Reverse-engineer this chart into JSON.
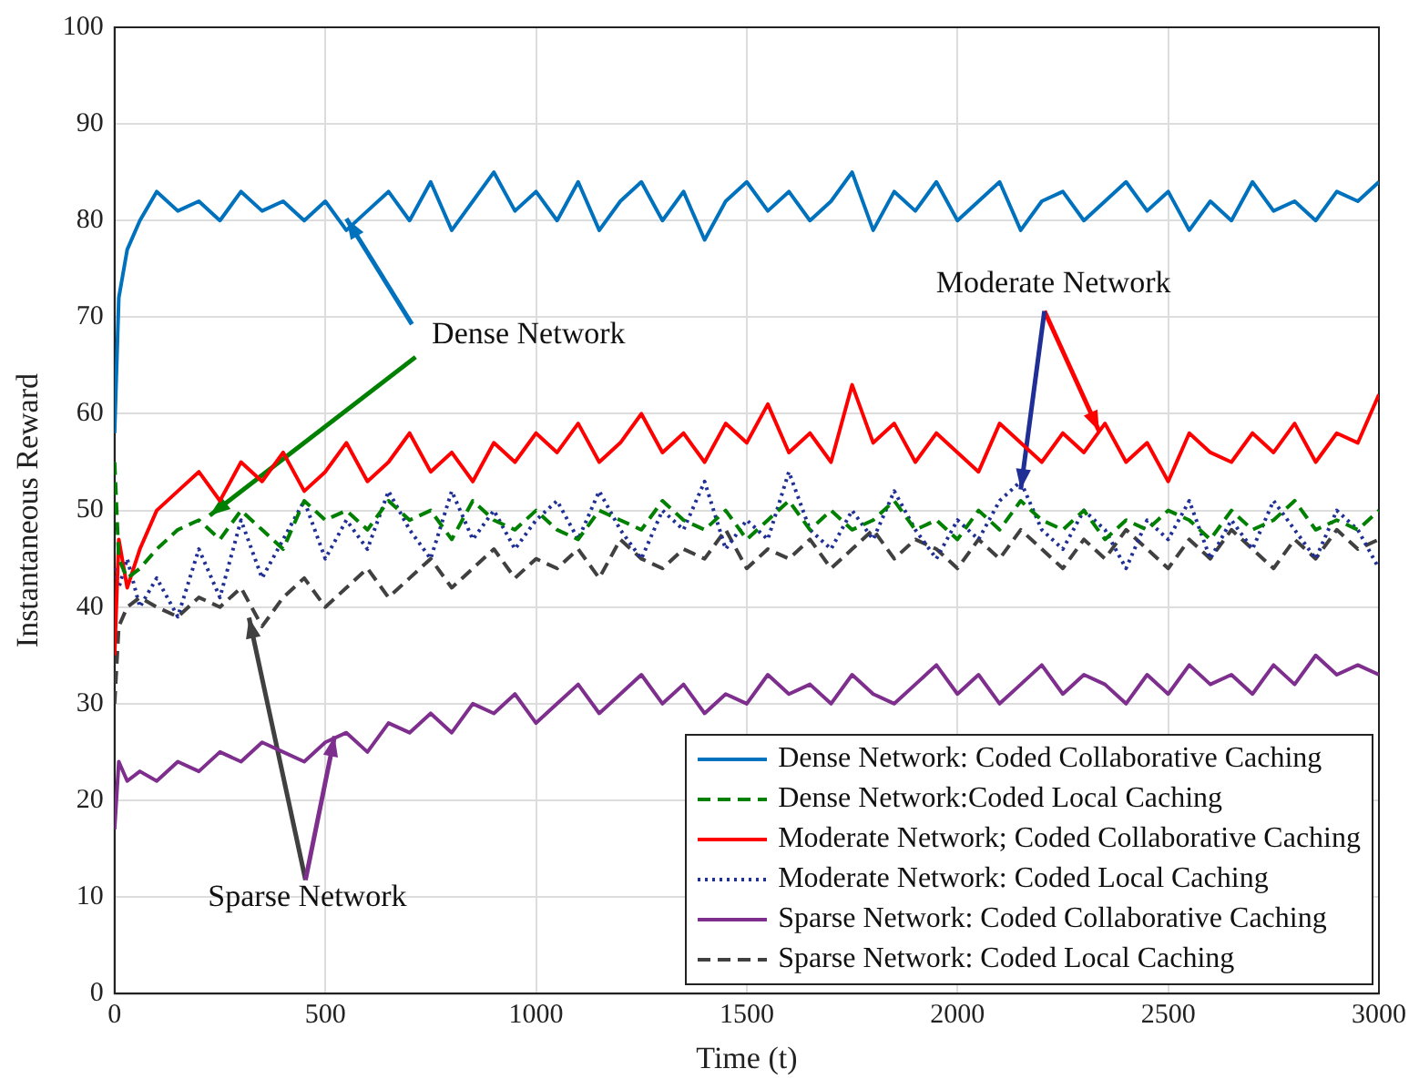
{
  "chart_data": {
    "type": "line",
    "xlabel": "Time (t)",
    "ylabel": "Instantaneous Reward",
    "x": [
      0,
      10,
      30,
      60,
      100,
      150,
      200,
      250,
      300,
      350,
      400,
      450,
      500,
      550,
      600,
      650,
      700,
      750,
      800,
      850,
      900,
      950,
      1000,
      1050,
      1100,
      1150,
      1200,
      1250,
      1300,
      1350,
      1400,
      1450,
      1500,
      1550,
      1600,
      1650,
      1700,
      1750,
      1800,
      1850,
      1900,
      1950,
      2000,
      2050,
      2100,
      2150,
      2200,
      2250,
      2300,
      2350,
      2400,
      2450,
      2500,
      2550,
      2600,
      2650,
      2700,
      2750,
      2800,
      2850,
      2900,
      2950,
      3000
    ],
    "series": [
      {
        "name": "Dense Network: Coded Collaborative Caching",
        "color": "#0072bd",
        "line_style": "solid",
        "values": [
          58,
          72,
          77,
          80,
          83,
          81,
          82,
          80,
          83,
          81,
          82,
          80,
          82,
          79,
          81,
          83,
          80,
          84,
          79,
          82,
          85,
          81,
          83,
          80,
          84,
          79,
          82,
          84,
          80,
          83,
          78,
          82,
          84,
          81,
          83,
          80,
          82,
          85,
          79,
          83,
          81,
          84,
          80,
          82,
          84,
          79,
          82,
          83,
          80,
          82,
          84,
          81,
          83,
          79,
          82,
          80,
          84,
          81,
          82,
          80,
          83,
          82,
          84
        ]
      },
      {
        "name": "Dense Network:Coded Local Caching",
        "color": "#008000",
        "line_style": "dashed",
        "values": [
          55,
          45,
          43,
          44,
          46,
          48,
          49,
          47,
          50,
          48,
          46,
          51,
          49,
          50,
          48,
          51,
          49,
          50,
          47,
          51,
          49,
          48,
          50,
          48,
          47,
          50,
          49,
          48,
          51,
          49,
          48,
          50,
          47,
          49,
          51,
          48,
          50,
          48,
          49,
          51,
          48,
          49,
          47,
          50,
          48,
          51,
          49,
          48,
          50,
          47,
          49,
          48,
          50,
          49,
          47,
          50,
          48,
          49,
          51,
          48,
          49,
          48,
          50
        ]
      },
      {
        "name": "Moderate Network; Coded Collaborative Caching",
        "color": "#ff0000",
        "line_style": "solid",
        "values": [
          35,
          47,
          42,
          46,
          50,
          52,
          54,
          51,
          55,
          53,
          56,
          52,
          54,
          57,
          53,
          55,
          58,
          54,
          56,
          53,
          57,
          55,
          58,
          56,
          59,
          55,
          57,
          60,
          56,
          58,
          55,
          59,
          57,
          61,
          56,
          58,
          55,
          63,
          57,
          59,
          55,
          58,
          56,
          54,
          59,
          57,
          55,
          58,
          56,
          59,
          55,
          57,
          53,
          58,
          56,
          55,
          58,
          56,
          59,
          55,
          58,
          57,
          62
        ]
      },
      {
        "name": "Moderate Network: Coded Local Caching",
        "color": "#1f2f96",
        "line_style": "dotted",
        "values": [
          44,
          42,
          45,
          40,
          43,
          39,
          46,
          41,
          49,
          43,
          47,
          51,
          45,
          49,
          46,
          52,
          48,
          45,
          52,
          47,
          50,
          46,
          49,
          51,
          47,
          52,
          48,
          45,
          50,
          48,
          53,
          46,
          49,
          47,
          54,
          48,
          46,
          50,
          47,
          52,
          48,
          45,
          49,
          47,
          51,
          53,
          48,
          46,
          50,
          48,
          44,
          49,
          47,
          51,
          45,
          49,
          46,
          51,
          48,
          45,
          50,
          48,
          44
        ]
      },
      {
        "name": "Sparse Network: Coded Collaborative Caching",
        "color": "#7e2f8e",
        "line_style": "solid",
        "values": [
          17,
          24,
          22,
          23,
          22,
          24,
          23,
          25,
          24,
          26,
          25,
          24,
          26,
          27,
          25,
          28,
          27,
          29,
          27,
          30,
          29,
          31,
          28,
          30,
          32,
          29,
          31,
          33,
          30,
          32,
          29,
          31,
          30,
          33,
          31,
          32,
          30,
          33,
          31,
          30,
          32,
          34,
          31,
          33,
          30,
          32,
          34,
          31,
          33,
          32,
          30,
          33,
          31,
          34,
          32,
          33,
          31,
          34,
          32,
          35,
          33,
          34,
          33
        ]
      },
      {
        "name": "Sparse Network: Coded Local Caching",
        "color": "#404040",
        "line_style": "dashed",
        "values": [
          30,
          38,
          40,
          41,
          40,
          39,
          41,
          40,
          42,
          38,
          41,
          43,
          40,
          42,
          44,
          41,
          43,
          45,
          42,
          44,
          46,
          43,
          45,
          44,
          46,
          43,
          47,
          45,
          44,
          46,
          45,
          48,
          44,
          46,
          45,
          47,
          44,
          46,
          48,
          45,
          47,
          46,
          44,
          47,
          45,
          48,
          46,
          44,
          47,
          45,
          48,
          46,
          44,
          47,
          45,
          48,
          46,
          44,
          47,
          45,
          48,
          46,
          47
        ]
      }
    ],
    "xlim": [
      0,
      3000
    ],
    "xticks": [
      0,
      500,
      1000,
      1500,
      2000,
      2500,
      3000
    ],
    "ylim": [
      0,
      100
    ],
    "yticks": [
      0,
      10,
      20,
      30,
      40,
      50,
      60,
      70,
      80,
      90,
      100
    ],
    "grid": true,
    "legend": "bottom right",
    "marker": "none",
    "annotations": [
      {
        "text": "Dense Network",
        "x": 550,
        "y": 80.2
      },
      {
        "text": "Moderate Network",
        "x": 2336,
        "y": 58.2
      },
      {
        "text": "Sparse Network",
        "x": 319,
        "y": 38.9
      }
    ]
  }
}
